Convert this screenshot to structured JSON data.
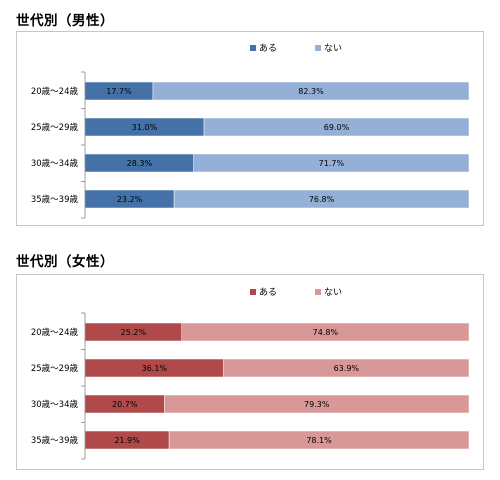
{
  "chart_data": [
    {
      "type": "bar",
      "orientation": "horizontal",
      "stacked": "100%",
      "title": "世代別（男性）",
      "categories": [
        "20歳～24歳",
        "25歳～29歳",
        "30歳～34歳",
        "35歳～39歳"
      ],
      "series": [
        {
          "name": "ある",
          "values": [
            17.7,
            31.0,
            28.3,
            23.2
          ],
          "labels": [
            "17.7%",
            "31.0%",
            "28.3%",
            "23.2%"
          ],
          "color": "#4472a8"
        },
        {
          "name": "ない",
          "values": [
            82.3,
            69.0,
            71.7,
            76.8
          ],
          "labels": [
            "82.3%",
            "69.0%",
            "71.7%",
            "76.8%"
          ],
          "color": "#95b0d6"
        }
      ],
      "xlim": [
        0,
        100
      ],
      "legend": "top-center",
      "grid": false
    },
    {
      "type": "bar",
      "orientation": "horizontal",
      "stacked": "100%",
      "title": "世代別（女性）",
      "categories": [
        "20歳～24歳",
        "25歳～29歳",
        "30歳～34歳",
        "35歳～39歳"
      ],
      "series": [
        {
          "name": "ある",
          "values": [
            25.2,
            36.1,
            20.7,
            21.9
          ],
          "labels": [
            "25.2%",
            "36.1%",
            "20.7%",
            "21.9%"
          ],
          "color": "#b04a4a"
        },
        {
          "name": "ない",
          "values": [
            74.8,
            63.9,
            79.3,
            78.1
          ],
          "labels": [
            "74.8%",
            "63.9%",
            "79.3%",
            "78.1%"
          ],
          "color": "#d89898"
        }
      ],
      "xlim": [
        0,
        100
      ],
      "legend": "top-center",
      "grid": false
    }
  ]
}
